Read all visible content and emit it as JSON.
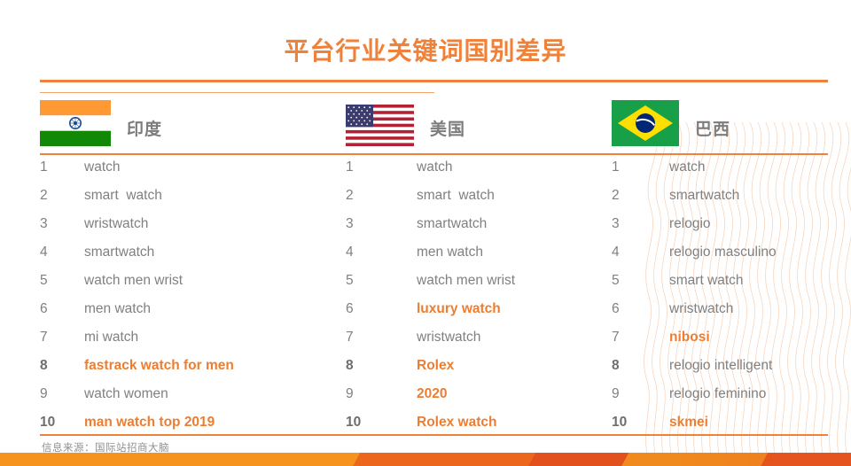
{
  "title": "平台行业关键词国别差异",
  "colors": {
    "accent": "#ED7D31",
    "rule_orange": "#F08138",
    "keyword_gray": "#808080"
  },
  "columns": [
    {
      "country": "印度",
      "flag_icon": "india-flag",
      "rows": [
        {
          "rank": "1",
          "keyword": "watch",
          "highlight": false,
          "rank_bold": false
        },
        {
          "rank": "2",
          "keyword": "smart  watch",
          "highlight": false,
          "rank_bold": false
        },
        {
          "rank": "3",
          "keyword": "wristwatch",
          "highlight": false,
          "rank_bold": false
        },
        {
          "rank": "4",
          "keyword": "smartwatch",
          "highlight": false,
          "rank_bold": false
        },
        {
          "rank": "5",
          "keyword": "watch men wrist",
          "highlight": false,
          "rank_bold": false
        },
        {
          "rank": "6",
          "keyword": "men watch",
          "highlight": false,
          "rank_bold": false
        },
        {
          "rank": "7",
          "keyword": "mi watch",
          "highlight": false,
          "rank_bold": false
        },
        {
          "rank": "8",
          "keyword": "fastrack watch for men",
          "highlight": true,
          "rank_bold": true
        },
        {
          "rank": "9",
          "keyword": "watch women",
          "highlight": false,
          "rank_bold": false
        },
        {
          "rank": "10",
          "keyword": "man watch top 2019",
          "highlight": true,
          "rank_bold": true
        }
      ]
    },
    {
      "country": "美国",
      "flag_icon": "usa-flag",
      "rows": [
        {
          "rank": "1",
          "keyword": "watch",
          "highlight": false,
          "rank_bold": false
        },
        {
          "rank": "2",
          "keyword": "smart  watch",
          "highlight": false,
          "rank_bold": false
        },
        {
          "rank": "3",
          "keyword": "smartwatch",
          "highlight": false,
          "rank_bold": false
        },
        {
          "rank": "4",
          "keyword": "men watch",
          "highlight": false,
          "rank_bold": false
        },
        {
          "rank": "5",
          "keyword": "watch men wrist",
          "highlight": false,
          "rank_bold": false
        },
        {
          "rank": "6",
          "keyword": "luxury watch",
          "highlight": true,
          "rank_bold": false
        },
        {
          "rank": "7",
          "keyword": "wristwatch",
          "highlight": false,
          "rank_bold": false
        },
        {
          "rank": "8",
          "keyword": "Rolex",
          "highlight": true,
          "rank_bold": true
        },
        {
          "rank": "9",
          "keyword": "2020",
          "highlight": true,
          "rank_bold": false
        },
        {
          "rank": "10",
          "keyword": "Rolex watch",
          "highlight": true,
          "rank_bold": true
        }
      ]
    },
    {
      "country": "巴西",
      "flag_icon": "brazil-flag",
      "rows": [
        {
          "rank": "1",
          "keyword": "watch",
          "highlight": false,
          "rank_bold": false
        },
        {
          "rank": "2",
          "keyword": "smartwatch",
          "highlight": false,
          "rank_bold": false
        },
        {
          "rank": "3",
          "keyword": "relogio",
          "highlight": false,
          "rank_bold": false
        },
        {
          "rank": "4",
          "keyword": "relogio masculino",
          "highlight": false,
          "rank_bold": false
        },
        {
          "rank": "5",
          "keyword": "smart watch",
          "highlight": false,
          "rank_bold": false
        },
        {
          "rank": "6",
          "keyword": "wristwatch",
          "highlight": false,
          "rank_bold": false
        },
        {
          "rank": "7",
          "keyword": "nibosi",
          "highlight": true,
          "rank_bold": false
        },
        {
          "rank": "8",
          "keyword": "relogio intelligent",
          "highlight": false,
          "rank_bold": true
        },
        {
          "rank": "9",
          "keyword": "relogio feminino",
          "highlight": false,
          "rank_bold": false
        },
        {
          "rank": "10",
          "keyword": "skmei",
          "highlight": true,
          "rank_bold": true
        }
      ]
    }
  ],
  "footer": {
    "source_label": "信息来源：国际站招商大脑"
  }
}
